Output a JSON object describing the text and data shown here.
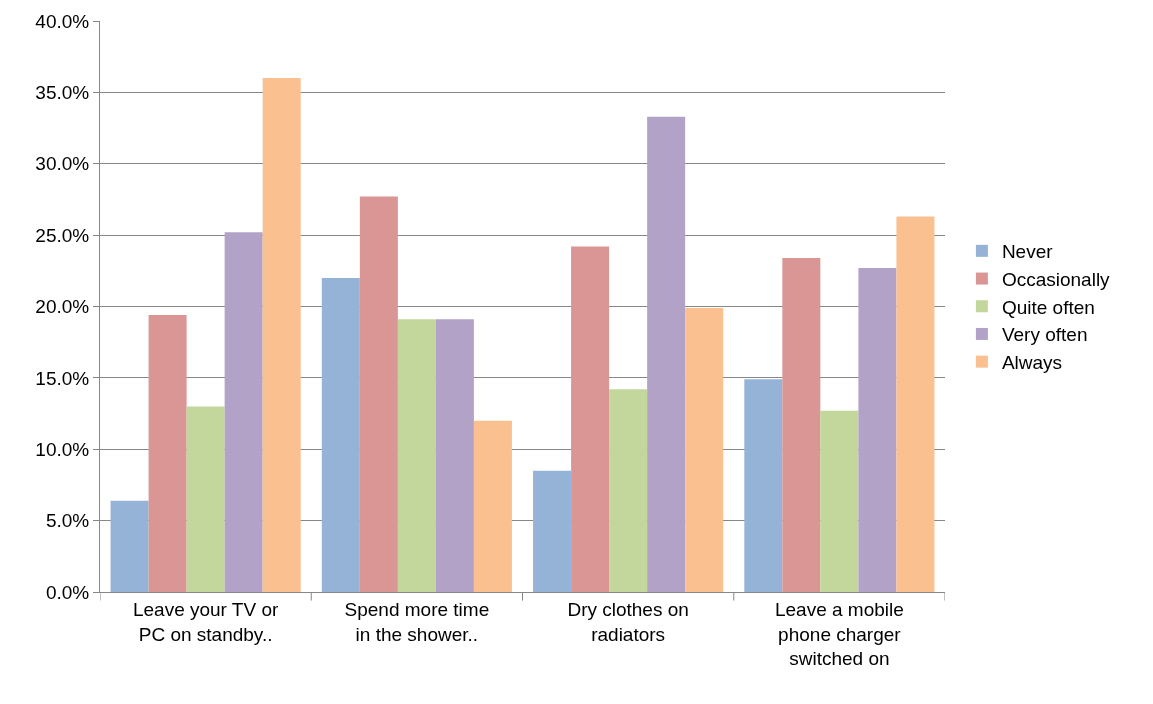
{
  "chart_data": {
    "type": "bar",
    "categories": [
      "Leave your TV or PC on standby..",
      "Spend more time in the shower..",
      "Dry clothes on radiators",
      "Leave a mobile phone charger switched on"
    ],
    "series": [
      {
        "name": "Never",
        "color": "#95b3d7",
        "values": [
          6.4,
          22.0,
          8.5,
          14.9
        ]
      },
      {
        "name": "Occasionally",
        "color": "#d99694",
        "values": [
          19.4,
          27.7,
          24.2,
          23.4
        ]
      },
      {
        "name": "Quite often",
        "color": "#c3d69b",
        "values": [
          13.0,
          19.1,
          14.2,
          12.7
        ]
      },
      {
        "name": "Very often",
        "color": "#b3a2c7",
        "values": [
          25.2,
          19.1,
          33.3,
          22.7
        ]
      },
      {
        "name": "Always",
        "color": "#fac090",
        "values": [
          36.0,
          12.0,
          19.9,
          26.3
        ]
      }
    ],
    "ylim": [
      0,
      40
    ],
    "yticks": [
      {
        "value": 0,
        "label": "0.0%"
      },
      {
        "value": 5,
        "label": "5.0%"
      },
      {
        "value": 10,
        "label": "10.0%"
      },
      {
        "value": 15,
        "label": "15.0%"
      },
      {
        "value": 20,
        "label": "20.0%"
      },
      {
        "value": 25,
        "label": "25.0%"
      },
      {
        "value": 30,
        "label": "30.0%"
      },
      {
        "value": 35,
        "label": "35.0%"
      },
      {
        "value": 40,
        "label": "40.0%"
      }
    ],
    "grid": "y",
    "legend": "right"
  }
}
